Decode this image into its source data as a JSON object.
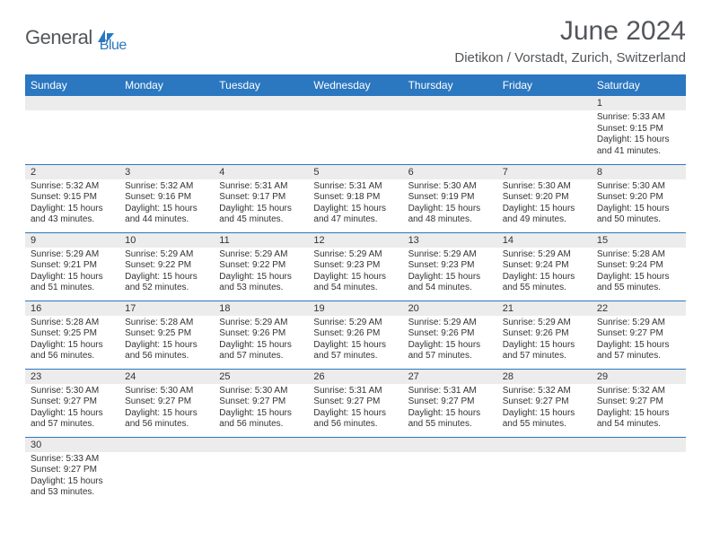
{
  "logo": {
    "text1": "General",
    "text2": "Blue"
  },
  "title": "June 2024",
  "location": "Dietikon / Vorstadt, Zurich, Switzerland",
  "colors": {
    "header_bg": "#2b77c0",
    "header_text": "#ffffff",
    "daynum_bg": "#ececec",
    "border": "#2b77c0",
    "logo_gray": "#53565a",
    "logo_blue": "#2b77c0",
    "body_text": "#333333",
    "page_bg": "#ffffff"
  },
  "typography": {
    "title_fontsize": 30,
    "location_fontsize": 15,
    "weekday_fontsize": 12,
    "daynum_fontsize": 11,
    "cell_fontsize": 10
  },
  "weekdays": [
    "Sunday",
    "Monday",
    "Tuesday",
    "Wednesday",
    "Thursday",
    "Friday",
    "Saturday"
  ],
  "weeks": [
    [
      {
        "day": "",
        "lines": []
      },
      {
        "day": "",
        "lines": []
      },
      {
        "day": "",
        "lines": []
      },
      {
        "day": "",
        "lines": []
      },
      {
        "day": "",
        "lines": []
      },
      {
        "day": "",
        "lines": []
      },
      {
        "day": "1",
        "lines": [
          "Sunrise: 5:33 AM",
          "Sunset: 9:15 PM",
          "Daylight: 15 hours and 41 minutes."
        ]
      }
    ],
    [
      {
        "day": "2",
        "lines": [
          "Sunrise: 5:32 AM",
          "Sunset: 9:15 PM",
          "Daylight: 15 hours and 43 minutes."
        ]
      },
      {
        "day": "3",
        "lines": [
          "Sunrise: 5:32 AM",
          "Sunset: 9:16 PM",
          "Daylight: 15 hours and 44 minutes."
        ]
      },
      {
        "day": "4",
        "lines": [
          "Sunrise: 5:31 AM",
          "Sunset: 9:17 PM",
          "Daylight: 15 hours and 45 minutes."
        ]
      },
      {
        "day": "5",
        "lines": [
          "Sunrise: 5:31 AM",
          "Sunset: 9:18 PM",
          "Daylight: 15 hours and 47 minutes."
        ]
      },
      {
        "day": "6",
        "lines": [
          "Sunrise: 5:30 AM",
          "Sunset: 9:19 PM",
          "Daylight: 15 hours and 48 minutes."
        ]
      },
      {
        "day": "7",
        "lines": [
          "Sunrise: 5:30 AM",
          "Sunset: 9:20 PM",
          "Daylight: 15 hours and 49 minutes."
        ]
      },
      {
        "day": "8",
        "lines": [
          "Sunrise: 5:30 AM",
          "Sunset: 9:20 PM",
          "Daylight: 15 hours and 50 minutes."
        ]
      }
    ],
    [
      {
        "day": "9",
        "lines": [
          "Sunrise: 5:29 AM",
          "Sunset: 9:21 PM",
          "Daylight: 15 hours and 51 minutes."
        ]
      },
      {
        "day": "10",
        "lines": [
          "Sunrise: 5:29 AM",
          "Sunset: 9:22 PM",
          "Daylight: 15 hours and 52 minutes."
        ]
      },
      {
        "day": "11",
        "lines": [
          "Sunrise: 5:29 AM",
          "Sunset: 9:22 PM",
          "Daylight: 15 hours and 53 minutes."
        ]
      },
      {
        "day": "12",
        "lines": [
          "Sunrise: 5:29 AM",
          "Sunset: 9:23 PM",
          "Daylight: 15 hours and 54 minutes."
        ]
      },
      {
        "day": "13",
        "lines": [
          "Sunrise: 5:29 AM",
          "Sunset: 9:23 PM",
          "Daylight: 15 hours and 54 minutes."
        ]
      },
      {
        "day": "14",
        "lines": [
          "Sunrise: 5:29 AM",
          "Sunset: 9:24 PM",
          "Daylight: 15 hours and 55 minutes."
        ]
      },
      {
        "day": "15",
        "lines": [
          "Sunrise: 5:28 AM",
          "Sunset: 9:24 PM",
          "Daylight: 15 hours and 55 minutes."
        ]
      }
    ],
    [
      {
        "day": "16",
        "lines": [
          "Sunrise: 5:28 AM",
          "Sunset: 9:25 PM",
          "Daylight: 15 hours and 56 minutes."
        ]
      },
      {
        "day": "17",
        "lines": [
          "Sunrise: 5:28 AM",
          "Sunset: 9:25 PM",
          "Daylight: 15 hours and 56 minutes."
        ]
      },
      {
        "day": "18",
        "lines": [
          "Sunrise: 5:29 AM",
          "Sunset: 9:26 PM",
          "Daylight: 15 hours and 57 minutes."
        ]
      },
      {
        "day": "19",
        "lines": [
          "Sunrise: 5:29 AM",
          "Sunset: 9:26 PM",
          "Daylight: 15 hours and 57 minutes."
        ]
      },
      {
        "day": "20",
        "lines": [
          "Sunrise: 5:29 AM",
          "Sunset: 9:26 PM",
          "Daylight: 15 hours and 57 minutes."
        ]
      },
      {
        "day": "21",
        "lines": [
          "Sunrise: 5:29 AM",
          "Sunset: 9:26 PM",
          "Daylight: 15 hours and 57 minutes."
        ]
      },
      {
        "day": "22",
        "lines": [
          "Sunrise: 5:29 AM",
          "Sunset: 9:27 PM",
          "Daylight: 15 hours and 57 minutes."
        ]
      }
    ],
    [
      {
        "day": "23",
        "lines": [
          "Sunrise: 5:30 AM",
          "Sunset: 9:27 PM",
          "Daylight: 15 hours and 57 minutes."
        ]
      },
      {
        "day": "24",
        "lines": [
          "Sunrise: 5:30 AM",
          "Sunset: 9:27 PM",
          "Daylight: 15 hours and 56 minutes."
        ]
      },
      {
        "day": "25",
        "lines": [
          "Sunrise: 5:30 AM",
          "Sunset: 9:27 PM",
          "Daylight: 15 hours and 56 minutes."
        ]
      },
      {
        "day": "26",
        "lines": [
          "Sunrise: 5:31 AM",
          "Sunset: 9:27 PM",
          "Daylight: 15 hours and 56 minutes."
        ]
      },
      {
        "day": "27",
        "lines": [
          "Sunrise: 5:31 AM",
          "Sunset: 9:27 PM",
          "Daylight: 15 hours and 55 minutes."
        ]
      },
      {
        "day": "28",
        "lines": [
          "Sunrise: 5:32 AM",
          "Sunset: 9:27 PM",
          "Daylight: 15 hours and 55 minutes."
        ]
      },
      {
        "day": "29",
        "lines": [
          "Sunrise: 5:32 AM",
          "Sunset: 9:27 PM",
          "Daylight: 15 hours and 54 minutes."
        ]
      }
    ],
    [
      {
        "day": "30",
        "lines": [
          "Sunrise: 5:33 AM",
          "Sunset: 9:27 PM",
          "Daylight: 15 hours and 53 minutes."
        ]
      },
      {
        "day": "",
        "lines": []
      },
      {
        "day": "",
        "lines": []
      },
      {
        "day": "",
        "lines": []
      },
      {
        "day": "",
        "lines": []
      },
      {
        "day": "",
        "lines": []
      },
      {
        "day": "",
        "lines": []
      }
    ]
  ]
}
